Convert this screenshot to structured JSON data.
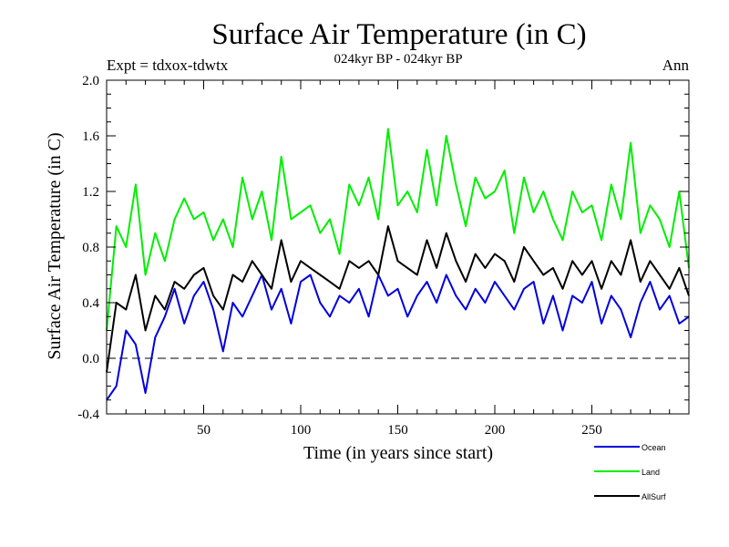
{
  "chart_data": {
    "type": "line",
    "title": "Surface Air Temperature (in C)",
    "subtitle": "024kyr BP - 024kyr BP",
    "experiment": "Expt = tdxox-tdwtx",
    "season": "Ann",
    "xlabel": "Time (in years since start)",
    "ylabel": "Surface Air Temperature (in C)",
    "xlim": [
      0,
      300
    ],
    "ylim": [
      -0.4,
      2.0
    ],
    "x_ticks": [
      50,
      100,
      150,
      200,
      250
    ],
    "y_ticks": [
      "-0.4",
      "0.0",
      "0.4",
      "0.8",
      "1.2",
      "1.6",
      "2.0"
    ],
    "zero_line": true,
    "grid": false,
    "legend_position": "bottom-right, outside plot",
    "series": [
      {
        "name": "Ocean",
        "color": "#0000dd",
        "x": [
          0,
          5,
          10,
          15,
          20,
          25,
          30,
          35,
          40,
          45,
          50,
          55,
          60,
          65,
          70,
          75,
          80,
          85,
          90,
          95,
          100,
          105,
          110,
          115,
          120,
          125,
          130,
          135,
          140,
          145,
          150,
          155,
          160,
          165,
          170,
          175,
          180,
          185,
          190,
          195,
          200,
          205,
          210,
          215,
          220,
          225,
          230,
          235,
          240,
          245,
          250,
          255,
          260,
          265,
          270,
          275,
          280,
          285,
          290,
          295,
          300
        ],
        "values": [
          -0.3,
          -0.2,
          0.2,
          0.1,
          -0.25,
          0.15,
          0.3,
          0.5,
          0.25,
          0.45,
          0.55,
          0.35,
          0.05,
          0.4,
          0.3,
          0.45,
          0.6,
          0.35,
          0.5,
          0.25,
          0.55,
          0.6,
          0.4,
          0.3,
          0.45,
          0.4,
          0.5,
          0.3,
          0.6,
          0.45,
          0.5,
          0.3,
          0.45,
          0.55,
          0.4,
          0.6,
          0.45,
          0.35,
          0.5,
          0.4,
          0.55,
          0.45,
          0.35,
          0.5,
          0.55,
          0.25,
          0.45,
          0.2,
          0.45,
          0.4,
          0.55,
          0.25,
          0.45,
          0.35,
          0.15,
          0.4,
          0.55,
          0.35,
          0.45,
          0.25,
          0.3
        ]
      },
      {
        "name": "Land",
        "color": "#00ee00",
        "x": [
          0,
          5,
          10,
          15,
          20,
          25,
          30,
          35,
          40,
          45,
          50,
          55,
          60,
          65,
          70,
          75,
          80,
          85,
          90,
          95,
          100,
          105,
          110,
          115,
          120,
          125,
          130,
          135,
          140,
          145,
          150,
          155,
          160,
          165,
          170,
          175,
          180,
          185,
          190,
          195,
          200,
          205,
          210,
          215,
          220,
          225,
          230,
          235,
          240,
          245,
          250,
          255,
          260,
          265,
          270,
          275,
          280,
          285,
          290,
          295,
          300
        ],
        "values": [
          0.2,
          0.95,
          0.8,
          1.25,
          0.6,
          0.9,
          0.7,
          1.0,
          1.15,
          1.0,
          1.05,
          0.85,
          1.0,
          0.8,
          1.3,
          1.0,
          1.2,
          0.85,
          1.45,
          1.0,
          1.05,
          1.1,
          0.9,
          1.0,
          0.75,
          1.25,
          1.1,
          1.3,
          1.0,
          1.65,
          1.1,
          1.2,
          1.05,
          1.5,
          1.1,
          1.6,
          1.25,
          0.95,
          1.3,
          1.15,
          1.2,
          1.35,
          0.9,
          1.3,
          1.05,
          1.2,
          1.0,
          0.85,
          1.2,
          1.05,
          1.1,
          0.85,
          1.25,
          1.0,
          1.55,
          0.9,
          1.1,
          1.0,
          0.8,
          1.2,
          0.65
        ]
      },
      {
        "name": "AllSurf",
        "color": "#000000",
        "x": [
          0,
          5,
          10,
          15,
          20,
          25,
          30,
          35,
          40,
          45,
          50,
          55,
          60,
          65,
          70,
          75,
          80,
          85,
          90,
          95,
          100,
          105,
          110,
          115,
          120,
          125,
          130,
          135,
          140,
          145,
          150,
          155,
          160,
          165,
          170,
          175,
          180,
          185,
          190,
          195,
          200,
          205,
          210,
          215,
          220,
          225,
          230,
          235,
          240,
          245,
          250,
          255,
          260,
          265,
          270,
          275,
          280,
          285,
          290,
          295,
          300
        ],
        "values": [
          -0.1,
          0.4,
          0.35,
          0.6,
          0.2,
          0.45,
          0.35,
          0.55,
          0.5,
          0.6,
          0.65,
          0.45,
          0.35,
          0.6,
          0.55,
          0.7,
          0.6,
          0.5,
          0.85,
          0.55,
          0.7,
          0.65,
          0.6,
          0.55,
          0.5,
          0.7,
          0.65,
          0.7,
          0.6,
          0.95,
          0.7,
          0.65,
          0.6,
          0.85,
          0.65,
          0.9,
          0.7,
          0.55,
          0.75,
          0.65,
          0.75,
          0.7,
          0.55,
          0.8,
          0.7,
          0.6,
          0.65,
          0.5,
          0.7,
          0.6,
          0.7,
          0.5,
          0.7,
          0.6,
          0.85,
          0.55,
          0.7,
          0.6,
          0.5,
          0.65,
          0.45
        ]
      }
    ]
  }
}
